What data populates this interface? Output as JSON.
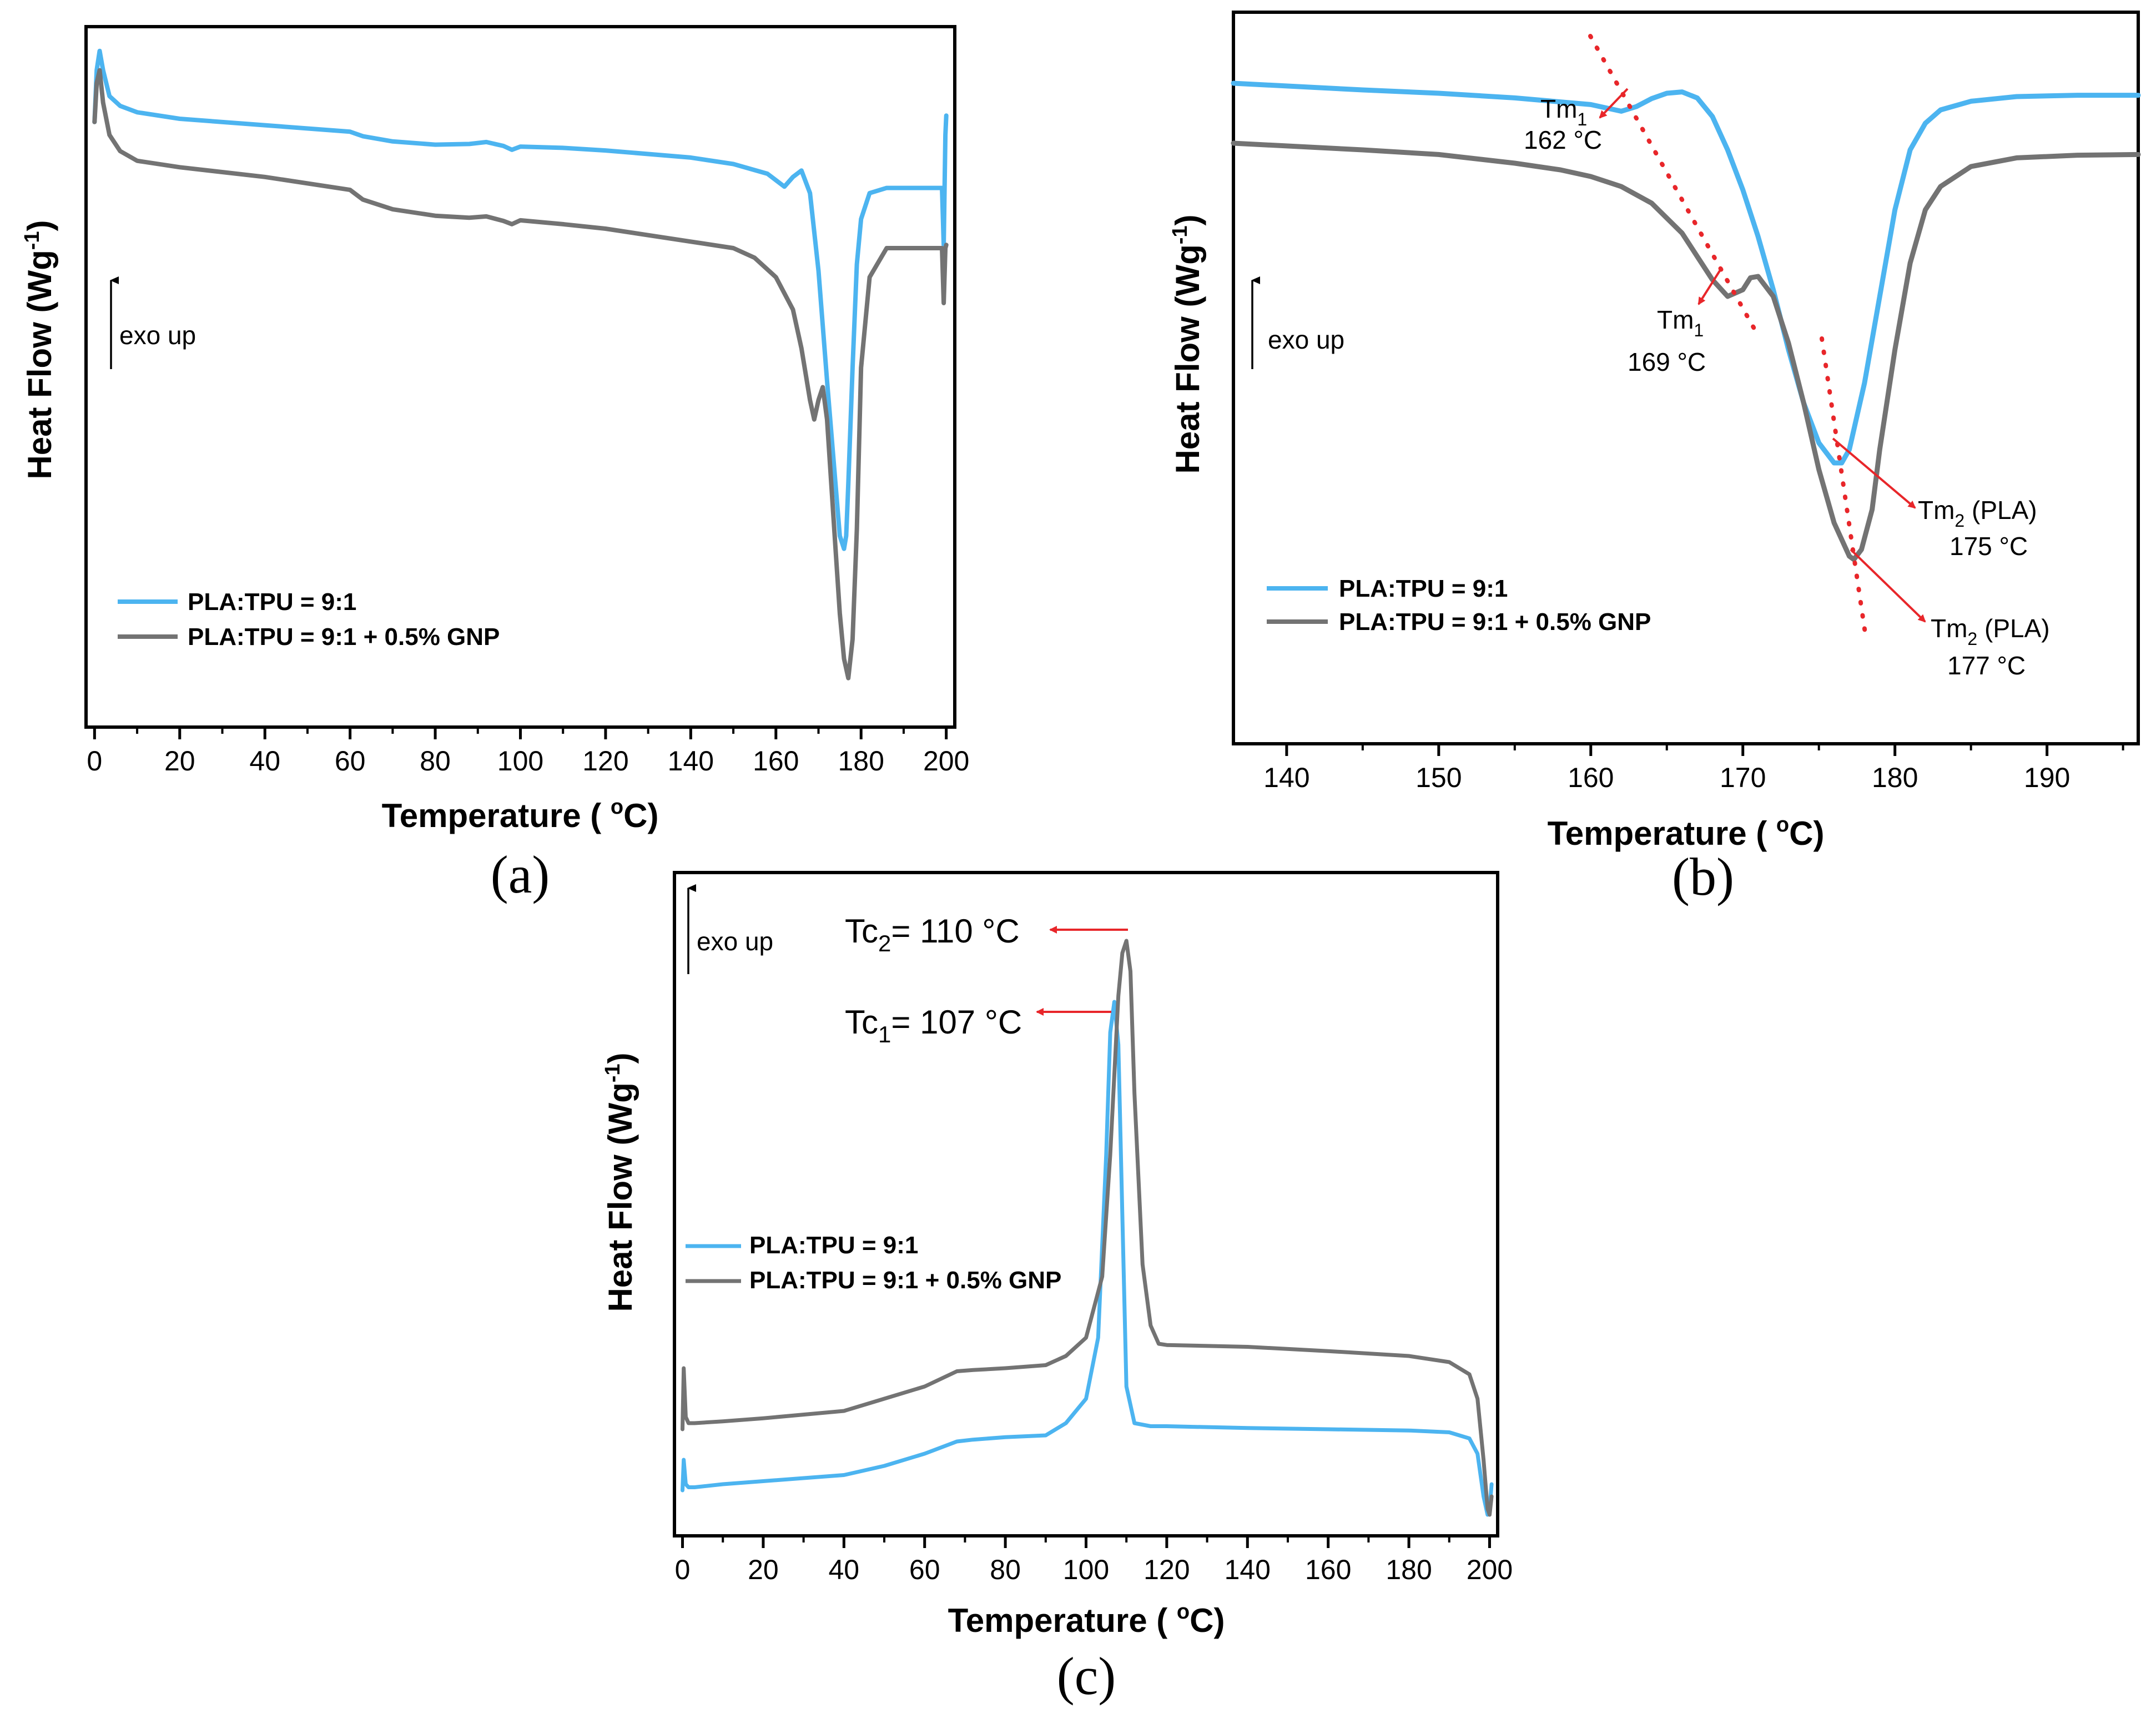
{
  "colors": {
    "series1": "#4cb4f0",
    "series2": "#737373",
    "annotation": "#e8262a"
  },
  "common": {
    "exo": "exo up",
    "sub1": "1",
    "sub2": "2",
    "degree": "o",
    "minus1": "-1"
  },
  "chart_data": [
    {
      "panel": "(a)",
      "type": "line",
      "xlabel": "Temperature ( °C)",
      "ylabel": "Heat Flow (Wg-1)",
      "xlim": [
        -2,
        202
      ],
      "ylim": [
        0,
        100
      ],
      "x_ticks": [
        0,
        20,
        40,
        60,
        80,
        100,
        120,
        140,
        160,
        180,
        200
      ],
      "y_ticks": [],
      "legend": [
        "PLA:TPU = 9:1",
        "PLA:TPU = 9:1 + 0.5% GNP"
      ],
      "series": [
        {
          "name": "PLA:TPU = 9:1",
          "x": [
            0,
            0.5,
            1.2,
            2,
            3.5,
            6,
            10,
            20,
            40,
            60,
            63,
            70,
            80,
            88,
            92,
            96,
            98,
            100,
            110,
            120,
            140,
            150,
            158,
            162,
            164,
            166,
            168,
            170,
            172,
            174,
            175,
            176,
            176.5,
            177,
            178,
            179,
            180,
            182,
            186,
            195,
            199,
            199.4,
            199.8,
            200
          ],
          "y": [
            88,
            96,
            99,
            96,
            92,
            90.5,
            89.5,
            88.5,
            87.5,
            86.5,
            85.8,
            85,
            84.5,
            84.6,
            84.9,
            84.3,
            83.7,
            84.2,
            84,
            83.6,
            82.5,
            81.5,
            80,
            78,
            79.5,
            80.5,
            77,
            65,
            48,
            32,
            24,
            22,
            24,
            32,
            50,
            66,
            73,
            77,
            77.8,
            77.8,
            77.8,
            69,
            86,
            89
          ]
        },
        {
          "name": "PLA:TPU = 9:1 + 0.5% GNP",
          "x": [
            0,
            0.5,
            1.2,
            2,
            3.5,
            6,
            10,
            20,
            40,
            60,
            63,
            70,
            80,
            88,
            92,
            96,
            98,
            100,
            110,
            120,
            140,
            150,
            155,
            160,
            164,
            166,
            168,
            169,
            170,
            171,
            172,
            174,
            175,
            176,
            177,
            178,
            179,
            180,
            182,
            186,
            195,
            199,
            199.4,
            199.8,
            200
          ],
          "y": [
            88,
            94,
            96,
            91,
            86,
            83.5,
            82,
            81,
            79.5,
            77.5,
            76,
            74.5,
            73.5,
            73.2,
            73.4,
            72.7,
            72.2,
            72.8,
            72.2,
            71.5,
            69.5,
            68.5,
            67,
            64,
            59,
            53,
            45,
            42,
            45,
            47,
            42,
            22,
            12,
            5,
            2,
            8,
            25,
            50,
            64,
            68.5,
            68.5,
            68.5,
            60,
            68.5,
            69
          ]
        }
      ]
    },
    {
      "panel": "(b)",
      "type": "line",
      "xlabel": "Temperature ( °C)",
      "ylabel": "Heat Flow (Wg-1)",
      "xlim": [
        136.5,
        196
      ],
      "ylim": [
        0,
        100
      ],
      "x_ticks": [
        140,
        150,
        160,
        170,
        180,
        190
      ],
      "y_ticks": [],
      "legend": [
        "PLA:TPU = 9:1",
        "PLA:TPU = 9:1 + 0.5% GNP"
      ],
      "series": [
        {
          "name": "PLA:TPU = 9:1",
          "x": [
            136.5,
            145,
            150,
            155,
            158,
            160,
            161,
            162,
            163,
            164,
            165,
            166,
            167,
            168,
            169,
            170,
            171,
            172,
            173,
            174,
            175,
            176,
            176.5,
            177,
            178,
            179,
            180,
            181,
            182,
            183,
            185,
            188,
            192,
            196
          ],
          "y": [
            95,
            94,
            93.5,
            92.8,
            92.2,
            91.8,
            91.3,
            90.8,
            91.5,
            92.7,
            93.5,
            93.7,
            92.8,
            90,
            85,
            79,
            72,
            64,
            55,
            47,
            41,
            38,
            38,
            40,
            50,
            63,
            76,
            85,
            89,
            91,
            92.3,
            93,
            93.2,
            93.2
          ]
        },
        {
          "name": "PLA:TPU = 9:1 + 0.5% GNP",
          "x": [
            136.5,
            145,
            150,
            155,
            158,
            160,
            162,
            164,
            166,
            167,
            168,
            169,
            170,
            170.5,
            171,
            172,
            173,
            174,
            175,
            176,
            177,
            177.3,
            177.8,
            178.5,
            179,
            180,
            181,
            182,
            183,
            185,
            188,
            192,
            196
          ],
          "y": [
            86,
            85,
            84.3,
            83,
            82,
            81,
            79.5,
            77,
            72.5,
            69,
            65.5,
            63,
            64,
            65.8,
            66,
            63,
            56,
            47,
            37,
            29,
            24,
            23.5,
            25,
            31,
            40,
            55,
            68,
            76,
            79.5,
            82.5,
            83.8,
            84.2,
            84.3
          ]
        }
      ],
      "annotations": [
        {
          "text": "Tm",
          "sub": "1",
          "value": "162 °C"
        },
        {
          "text": "Tm",
          "sub": "1",
          "value": "169 °C"
        },
        {
          "text": "Tm",
          "sub": "2",
          "suffix": " (PLA)",
          "value": "175 °C"
        },
        {
          "text": "Tm",
          "sub": "2",
          "suffix": " (PLA)",
          "value": "177 °C"
        }
      ]
    },
    {
      "panel": "(c)",
      "type": "line",
      "xlabel": "Temperature ( °C)",
      "ylabel": "Heat Flow (Wg-1)",
      "xlim": [
        -2,
        202
      ],
      "ylim": [
        0,
        100
      ],
      "x_ticks": [
        0,
        20,
        40,
        60,
        80,
        100,
        120,
        140,
        160,
        180,
        200
      ],
      "y_ticks": [],
      "legend": [
        "PLA:TPU = 9:1",
        "PLA:TPU = 9:1 + 0.5% GNP"
      ],
      "series": [
        {
          "name": "PLA:TPU = 9:1",
          "x": [
            0,
            0.3,
            0.8,
            1.5,
            3,
            10,
            20,
            40,
            50,
            60,
            68,
            72,
            80,
            90,
            95,
            100,
            103,
            105,
            106,
            107,
            108,
            109,
            110,
            112,
            116,
            120,
            140,
            160,
            180,
            190,
            195,
            197,
            198.5,
            199.5,
            200,
            200.5
          ],
          "y": [
            5,
            10,
            6,
            5.5,
            5.5,
            6,
            6.5,
            7.5,
            9,
            11,
            13,
            13.3,
            13.7,
            14,
            16,
            20,
            30,
            60,
            80,
            85,
            78,
            50,
            22,
            16,
            15.5,
            15.5,
            15.2,
            15,
            14.8,
            14.5,
            13.5,
            11,
            4,
            1,
            2,
            6
          ]
        },
        {
          "name": "PLA:TPU = 9:1 + 0.5% GNP",
          "x": [
            0,
            0.3,
            0.8,
            1.5,
            3,
            10,
            20,
            40,
            50,
            60,
            68,
            72,
            80,
            90,
            95,
            100,
            104,
            106,
            108,
            109,
            110,
            111,
            112,
            114,
            116,
            118,
            120,
            140,
            160,
            180,
            190,
            195,
            197,
            198.5,
            199.5,
            200,
            200.5
          ],
          "y": [
            15,
            25,
            17,
            16,
            16,
            16.3,
            16.8,
            18,
            20,
            22,
            24.5,
            24.7,
            25,
            25.5,
            27,
            30,
            40,
            60,
            86,
            93,
            95,
            90,
            70,
            42,
            32,
            29,
            28.8,
            28.5,
            27.8,
            27,
            26,
            24,
            20,
            10,
            2,
            1,
            4
          ]
        }
      ],
      "annotations": [
        {
          "text": "Tc",
          "sub": "2",
          "value": "= 110 °C"
        },
        {
          "text": "Tc",
          "sub": "1",
          "value": "= 107 °C"
        }
      ]
    }
  ]
}
